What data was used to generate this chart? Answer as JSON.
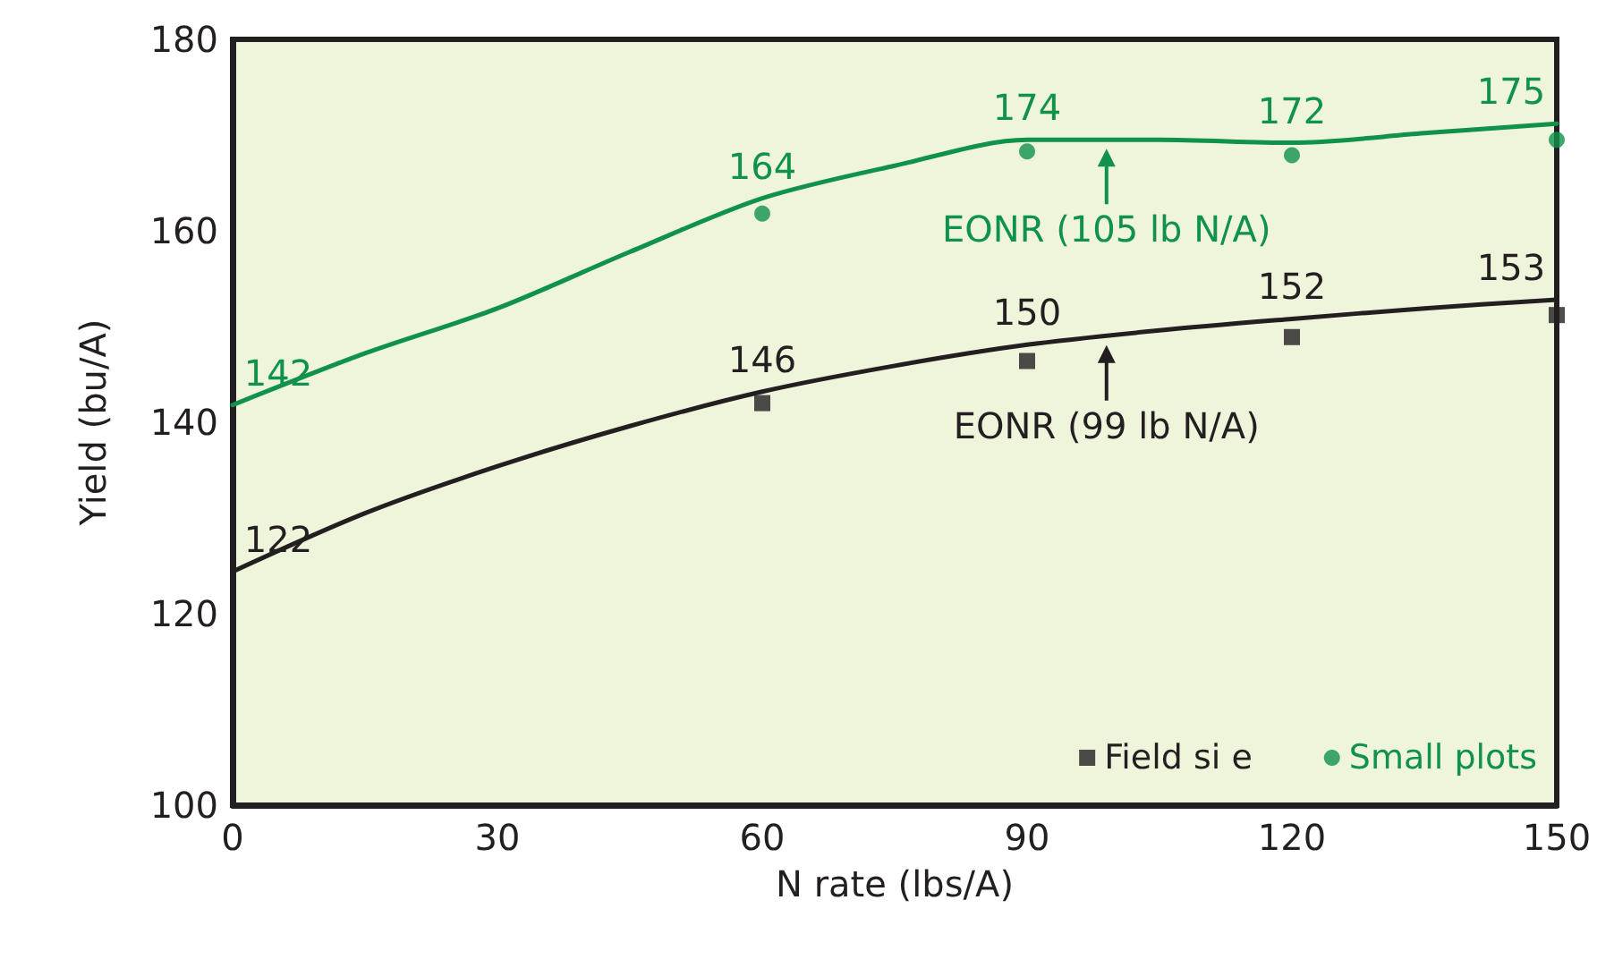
{
  "chart_data": {
    "type": "scatter",
    "xlabel": "N rate (lbs/A)",
    "ylabel": "Yield (bu/A)",
    "xlim": [
      0,
      150
    ],
    "xticks": [
      0,
      30,
      60,
      90,
      120,
      150
    ],
    "ylim": [
      100,
      180
    ],
    "yticks": [
      100,
      120,
      140,
      160,
      180
    ],
    "grid": false,
    "legend": "bottom right",
    "series": [
      {
        "name": "Field si e",
        "color": "#231f20",
        "marker": "square",
        "x": [
          60,
          90,
          120,
          150
        ],
        "values": [
          142.0,
          146.4,
          148.9,
          151.2
        ]
      },
      {
        "name": "Small plots",
        "color": "#10924a",
        "marker": "circle",
        "x": [
          60,
          90,
          120,
          150
        ],
        "values": [
          161.8,
          168.3,
          167.9,
          169.5
        ]
      },
      {
        "type": "line",
        "color": "#231f20",
        "marker": "none",
        "line_style": "solid",
        "x": [
          0,
          15,
          30,
          45,
          60,
          75,
          90,
          105,
          120,
          135,
          150
        ],
        "values": [
          124.4,
          130.5,
          135.4,
          139.6,
          143.2,
          145.9,
          148.1,
          149.6,
          150.8,
          151.9,
          152.8
        ]
      },
      {
        "type": "line",
        "color": "#10924a",
        "marker": "none",
        "line_style": "solid",
        "x": [
          0,
          15,
          30,
          45,
          60,
          75,
          90,
          105,
          120,
          135,
          150
        ],
        "values": [
          141.8,
          147.2,
          151.9,
          157.8,
          163.4,
          166.8,
          169.5,
          169.5,
          169.2,
          170.2,
          171.2
        ]
      }
    ],
    "annotations": [
      {
        "text": "142",
        "x": 0,
        "y": 141.8
      },
      {
        "text": "164",
        "x": 60,
        "y": 163.4
      },
      {
        "text": "174",
        "x": 90,
        "y": 169.5
      },
      {
        "text": "172",
        "x": 120,
        "y": 169.2
      },
      {
        "text": "175",
        "x": 150,
        "y": 171.2
      },
      {
        "text": "122",
        "x": 0,
        "y": 124.4
      },
      {
        "text": "146",
        "x": 60,
        "y": 143.2
      },
      {
        "text": "150",
        "x": 90,
        "y": 148.1
      },
      {
        "text": "152",
        "x": 120,
        "y": 150.8
      },
      {
        "text": "153",
        "x": 150,
        "y": 152.8
      },
      {
        "text": "EONR (105 lb N/A)",
        "x": 99,
        "y": 169.5
      },
      {
        "text": "EONR (99 lb N/A)",
        "x": 99,
        "y": 149.0
      }
    ]
  }
}
